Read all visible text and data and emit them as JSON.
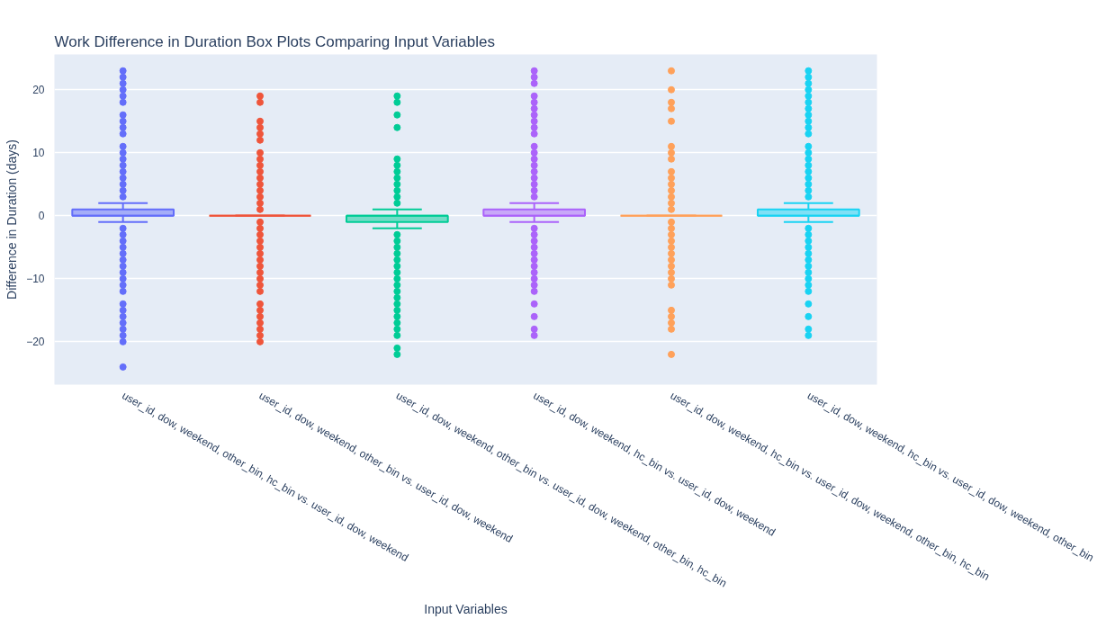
{
  "chart_data": {
    "type": "box",
    "title": "Work Difference in Duration Box Plots Comparing Input Variables",
    "xlabel": "Input Variables",
    "ylabel": "Difference in Duration (days)",
    "categories": [
      "user_id, dow, weekend, other_bin, hc_bin vs. user_id, dow, weekend",
      "user_id, dow, weekend, other_bin vs. user_id, dow, weekend",
      "user_id, dow, weekend, other_bin vs. user_id, dow, weekend, other_bin, hc_bin",
      "user_id, dow, weekend, hc_bin vs. user_id, dow, weekend",
      "user_id, dow, weekend, hc_bin vs. user_id, dow, weekend, other_bin, hc_bin",
      "user_id, dow, weekend, hc_bin vs. user_id, dow, weekend, other_bin"
    ],
    "colors": [
      "#636efa",
      "#ef553b",
      "#00cc96",
      "#ab63fa",
      "#ffa15a",
      "#19d3f3"
    ],
    "boxes": [
      {
        "low": -1,
        "q1": 0,
        "median": 0,
        "q3": 1,
        "high": 2,
        "outliers": [
          23,
          22,
          21,
          20,
          19,
          18,
          16,
          15,
          14,
          13,
          11,
          10,
          9,
          8,
          7,
          6,
          5,
          4,
          3,
          -2,
          -3,
          -4,
          -5,
          -6,
          -7,
          -8,
          -9,
          -10,
          -11,
          -12,
          -14,
          -15,
          -16,
          -17,
          -18,
          -19,
          -20,
          -24
        ]
      },
      {
        "low": 0,
        "q1": 0,
        "median": 0,
        "q3": 0,
        "high": 0,
        "outliers": [
          19,
          18,
          15,
          14,
          13,
          12,
          10,
          9,
          8,
          7,
          6,
          5,
          4,
          3,
          2,
          1,
          -1,
          -2,
          -3,
          -4,
          -5,
          -6,
          -7,
          -8,
          -9,
          -10,
          -11,
          -12,
          -14,
          -15,
          -16,
          -17,
          -18,
          -19,
          -20
        ]
      },
      {
        "low": -2,
        "q1": -1,
        "median": 0,
        "q3": 0,
        "high": 1,
        "outliers": [
          19,
          18,
          16,
          14,
          9,
          8,
          7,
          6,
          5,
          4,
          3,
          2,
          -3,
          -4,
          -5,
          -6,
          -7,
          -8,
          -9,
          -10,
          -11,
          -12,
          -13,
          -14,
          -15,
          -16,
          -17,
          -18,
          -19,
          -21,
          -22
        ]
      },
      {
        "low": -1,
        "q1": 0,
        "median": 0,
        "q3": 1,
        "high": 2,
        "outliers": [
          23,
          22,
          21,
          19,
          18,
          17,
          16,
          15,
          14,
          13,
          11,
          10,
          9,
          8,
          7,
          6,
          5,
          4,
          3,
          -2,
          -3,
          -4,
          -5,
          -6,
          -7,
          -8,
          -9,
          -10,
          -11,
          -12,
          -14,
          -16,
          -18,
          -19
        ]
      },
      {
        "low": 0,
        "q1": 0,
        "median": 0,
        "q3": 0,
        "high": 0,
        "outliers": [
          23,
          20,
          18,
          17,
          15,
          11,
          10,
          9,
          7,
          6,
          5,
          4,
          3,
          2,
          1,
          -1,
          -2,
          -3,
          -4,
          -5,
          -6,
          -7,
          -8,
          -9,
          -10,
          -11,
          -15,
          -16,
          -17,
          -18,
          -22
        ]
      },
      {
        "low": -1,
        "q1": 0,
        "median": 0,
        "q3": 1,
        "high": 2,
        "outliers": [
          23,
          22,
          21,
          20,
          19,
          18,
          17,
          16,
          15,
          14,
          13,
          11,
          10,
          9,
          8,
          7,
          6,
          5,
          4,
          3,
          -2,
          -3,
          -4,
          -5,
          -6,
          -7,
          -8,
          -9,
          -10,
          -11,
          -12,
          -14,
          -16,
          -18,
          -19
        ]
      }
    ],
    "ylim": [
      -26.8,
      25.6
    ],
    "yticks": [
      {
        "value": -20,
        "label": "−20"
      },
      {
        "value": -10,
        "label": "−10"
      },
      0,
      10,
      20
    ],
    "grid": "y"
  }
}
